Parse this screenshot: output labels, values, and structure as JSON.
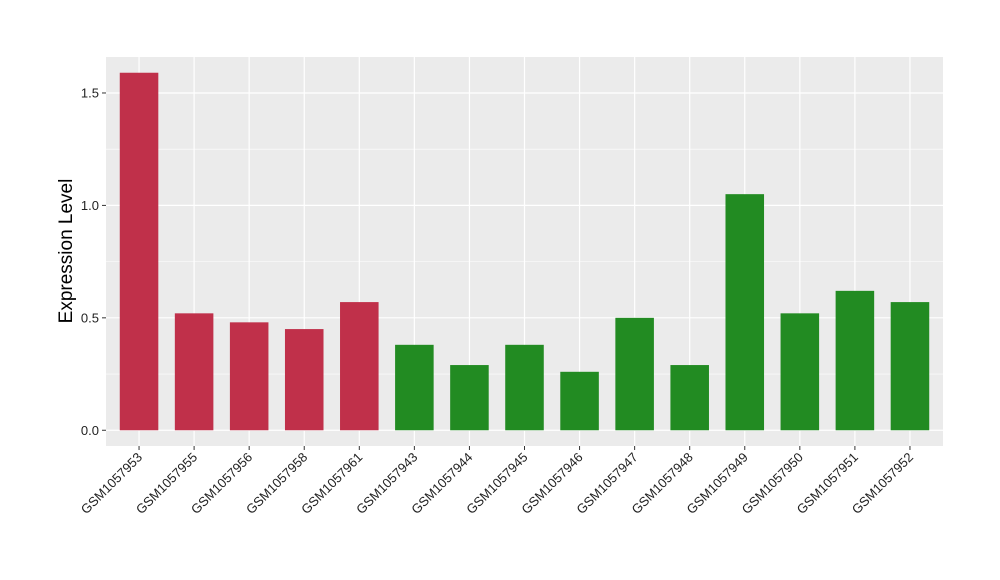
{
  "chart_data": {
    "type": "bar",
    "title": "",
    "xlabel": "",
    "ylabel": "Expression Level",
    "ylim": [
      -0.07,
      1.66
    ],
    "yticks": [
      0.0,
      0.5,
      1.0,
      1.5
    ],
    "ytick_labels": [
      "0.0",
      "0.5",
      "1.0",
      "1.5"
    ],
    "grid": true,
    "legend": "none",
    "categories": [
      "GSM1057953",
      "GSM1057955",
      "GSM1057956",
      "GSM1057958",
      "GSM1057961",
      "GSM1057943",
      "GSM1057944",
      "GSM1057945",
      "GSM1057946",
      "GSM1057947",
      "GSM1057948",
      "GSM1057949",
      "GSM1057950",
      "GSM1057951",
      "GSM1057952"
    ],
    "values": [
      1.59,
      0.52,
      0.48,
      0.45,
      0.57,
      0.38,
      0.29,
      0.38,
      0.26,
      0.5,
      0.29,
      1.05,
      0.52,
      0.62,
      0.57
    ],
    "bar_colors": [
      "#C0304A",
      "#C0304A",
      "#C0304A",
      "#C0304A",
      "#C0304A",
      "#228B22",
      "#228B22",
      "#228B22",
      "#228B22",
      "#228B22",
      "#228B22",
      "#228B22",
      "#228B22",
      "#228B22",
      "#228B22"
    ],
    "panel_background": "#EBEBEB",
    "grid_color": "#FFFFFF"
  }
}
